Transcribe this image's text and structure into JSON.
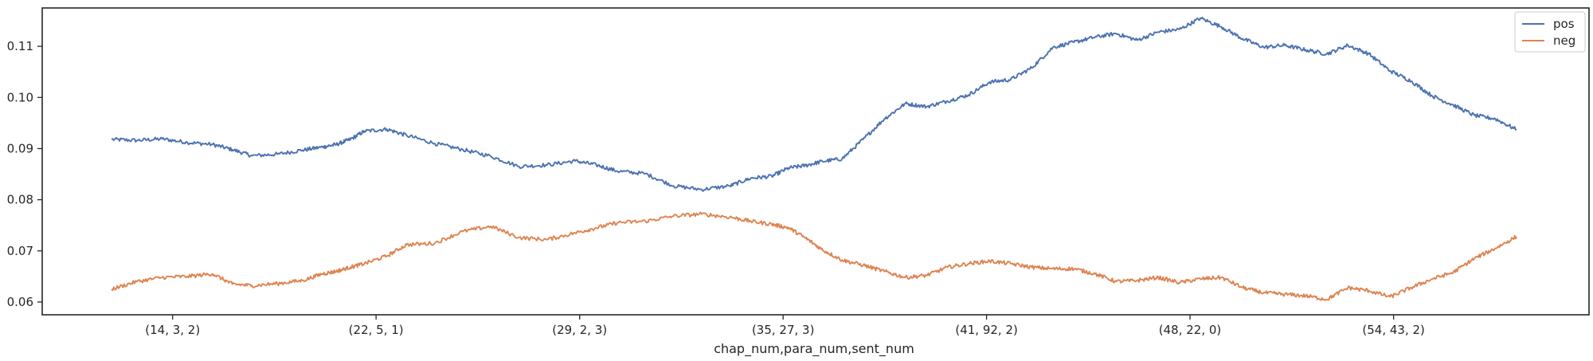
{
  "chart_data": {
    "type": "line",
    "title": "",
    "xlabel": "chap_num,para_num,sent_num",
    "ylabel": "",
    "x_tick_labels": [
      "(14, 3, 2)",
      "(22, 5, 1)",
      "(29, 2, 3)",
      "(35, 27, 3)",
      "(41, 92, 2)",
      "(48, 22, 0)",
      "(54, 43, 2)"
    ],
    "x_tick_positions": [
      0.0435,
      0.1883,
      0.3332,
      0.478,
      0.6228,
      0.7676,
      0.9125
    ],
    "y_ticks": [
      0.06,
      0.07,
      0.08,
      0.09,
      0.1,
      0.11
    ],
    "y_tick_labels": [
      "0.06",
      "0.07",
      "0.08",
      "0.09",
      "0.10",
      "0.11"
    ],
    "ylim": [
      0.0575,
      0.1175
    ],
    "xlim": [
      0,
      1
    ],
    "grid": false,
    "legend_position": "top-right",
    "series": [
      {
        "name": "pos",
        "color": "#4C72B0",
        "x": [
          0.0,
          0.018,
          0.036,
          0.054,
          0.072,
          0.086,
          0.1,
          0.118,
          0.136,
          0.15,
          0.16,
          0.17,
          0.18,
          0.196,
          0.21,
          0.23,
          0.25,
          0.27,
          0.29,
          0.31,
          0.33,
          0.345,
          0.36,
          0.38,
          0.4,
          0.42,
          0.44,
          0.455,
          0.47,
          0.482,
          0.494,
          0.506,
          0.52,
          0.535,
          0.55,
          0.565,
          0.58,
          0.595,
          0.61,
          0.625,
          0.64,
          0.655,
          0.67,
          0.685,
          0.7,
          0.715,
          0.73,
          0.745,
          0.76,
          0.775,
          0.79,
          0.805,
          0.82,
          0.835,
          0.85,
          0.865,
          0.88,
          0.895,
          0.91,
          0.925,
          0.94,
          0.955,
          0.97,
          0.985,
          1.0
        ],
        "y": [
          0.0918,
          0.0916,
          0.0919,
          0.0912,
          0.0908,
          0.0898,
          0.0886,
          0.0889,
          0.0897,
          0.0903,
          0.0908,
          0.0918,
          0.0934,
          0.0938,
          0.0926,
          0.091,
          0.0898,
          0.0885,
          0.0865,
          0.0868,
          0.0876,
          0.0868,
          0.0856,
          0.0851,
          0.0827,
          0.082,
          0.0827,
          0.0842,
          0.0846,
          0.0862,
          0.0867,
          0.0875,
          0.088,
          0.0918,
          0.0958,
          0.0988,
          0.0982,
          0.0993,
          0.1005,
          0.103,
          0.1035,
          0.1058,
          0.1098,
          0.1108,
          0.1118,
          0.1125,
          0.1112,
          0.1128,
          0.1133,
          0.1155,
          0.1138,
          0.1115,
          0.1098,
          0.1102,
          0.1093,
          0.1085,
          0.1102,
          0.1085,
          0.1052,
          0.1032,
          0.1003,
          0.0985,
          0.0965,
          0.0958,
          0.0937
        ]
      },
      {
        "name": "neg",
        "color": "#DD8452",
        "x": [
          0.0,
          0.018,
          0.036,
          0.054,
          0.072,
          0.086,
          0.1,
          0.118,
          0.136,
          0.15,
          0.16,
          0.17,
          0.18,
          0.196,
          0.21,
          0.23,
          0.25,
          0.27,
          0.29,
          0.31,
          0.33,
          0.345,
          0.36,
          0.38,
          0.4,
          0.42,
          0.44,
          0.455,
          0.47,
          0.482,
          0.494,
          0.506,
          0.52,
          0.535,
          0.55,
          0.565,
          0.58,
          0.595,
          0.61,
          0.625,
          0.64,
          0.655,
          0.67,
          0.685,
          0.7,
          0.715,
          0.73,
          0.745,
          0.76,
          0.775,
          0.79,
          0.805,
          0.82,
          0.835,
          0.85,
          0.865,
          0.88,
          0.895,
          0.91,
          0.925,
          0.94,
          0.955,
          0.97,
          0.985,
          1.0
        ],
        "y": [
          0.0625,
          0.064,
          0.0648,
          0.065,
          0.0655,
          0.0635,
          0.0632,
          0.0636,
          0.0642,
          0.0655,
          0.066,
          0.0668,
          0.0675,
          0.069,
          0.0712,
          0.0715,
          0.0738,
          0.0748,
          0.0726,
          0.0722,
          0.0735,
          0.0745,
          0.0755,
          0.0758,
          0.0768,
          0.0772,
          0.0766,
          0.0758,
          0.0752,
          0.0745,
          0.0725,
          0.0702,
          0.0682,
          0.0672,
          0.066,
          0.0648,
          0.0652,
          0.0668,
          0.0675,
          0.068,
          0.0675,
          0.0668,
          0.0665,
          0.0665,
          0.0655,
          0.064,
          0.0642,
          0.0648,
          0.0638,
          0.0645,
          0.0648,
          0.0628,
          0.0618,
          0.0615,
          0.0612,
          0.0605,
          0.0628,
          0.0622,
          0.061,
          0.0628,
          0.0645,
          0.0658,
          0.0685,
          0.0705,
          0.0728
        ]
      }
    ]
  }
}
